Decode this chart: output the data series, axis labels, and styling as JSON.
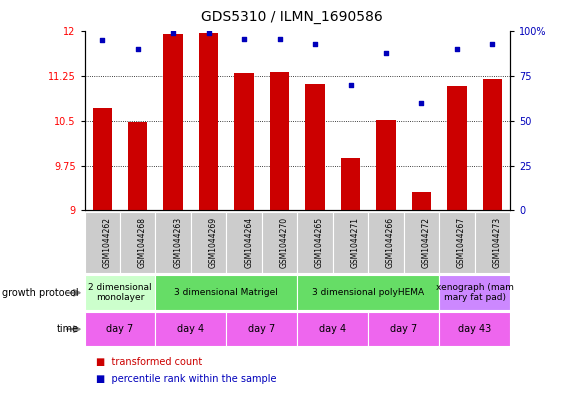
{
  "title": "GDS5310 / ILMN_1690586",
  "samples": [
    "GSM1044262",
    "GSM1044268",
    "GSM1044263",
    "GSM1044269",
    "GSM1044264",
    "GSM1044270",
    "GSM1044265",
    "GSM1044271",
    "GSM1044266",
    "GSM1044272",
    "GSM1044267",
    "GSM1044273"
  ],
  "bar_values": [
    10.72,
    10.48,
    11.95,
    11.97,
    11.3,
    11.32,
    11.12,
    9.88,
    10.52,
    9.3,
    11.08,
    11.2
  ],
  "dot_values": [
    95,
    90,
    99,
    99,
    96,
    96,
    93,
    70,
    88,
    60,
    90,
    93
  ],
  "ylim_left": [
    9,
    12
  ],
  "ylim_right": [
    0,
    100
  ],
  "yticks_left": [
    9,
    9.75,
    10.5,
    11.25,
    12
  ],
  "yticks_right": [
    0,
    25,
    50,
    75,
    100
  ],
  "bar_color": "#cc0000",
  "dot_color": "#0000bb",
  "bar_width": 0.55,
  "growth_protocol_groups": [
    {
      "label": "2 dimensional\nmonolayer",
      "start": 0,
      "end": 2,
      "color": "#ccffcc"
    },
    {
      "label": "3 dimensional Matrigel",
      "start": 2,
      "end": 6,
      "color": "#66dd66"
    },
    {
      "label": "3 dimensional polyHEMA",
      "start": 6,
      "end": 10,
      "color": "#66dd66"
    },
    {
      "label": "xenograph (mam\nmary fat pad)",
      "start": 10,
      "end": 12,
      "color": "#cc88ff"
    }
  ],
  "time_groups": [
    {
      "label": "day 7",
      "start": 0,
      "end": 2,
      "color": "#ee66ee"
    },
    {
      "label": "day 4",
      "start": 2,
      "end": 4,
      "color": "#ee66ee"
    },
    {
      "label": "day 7",
      "start": 4,
      "end": 6,
      "color": "#ee66ee"
    },
    {
      "label": "day 4",
      "start": 6,
      "end": 8,
      "color": "#ee66ee"
    },
    {
      "label": "day 7",
      "start": 8,
      "end": 10,
      "color": "#ee66ee"
    },
    {
      "label": "day 43",
      "start": 10,
      "end": 12,
      "color": "#ee66ee"
    }
  ],
  "legend_items": [
    {
      "label": "transformed count",
      "color": "#cc0000"
    },
    {
      "label": "percentile rank within the sample",
      "color": "#0000bb"
    }
  ],
  "sample_bg": "#cccccc",
  "arrow_color": "#888888",
  "label_fontsize": 7,
  "tick_fontsize": 7,
  "sample_fontsize": 5.5,
  "row_fontsize": 7,
  "title_fontsize": 10
}
